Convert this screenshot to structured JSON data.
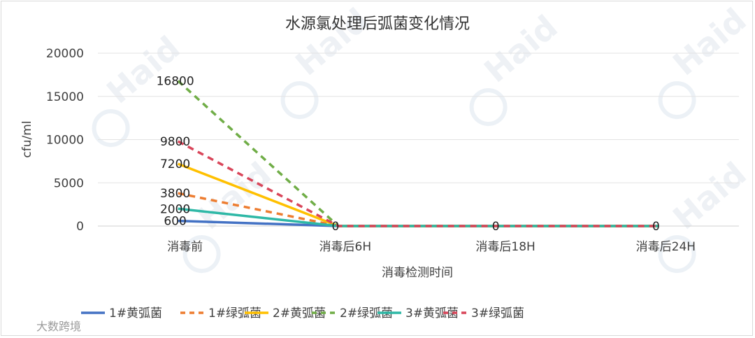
{
  "chart_data": {
    "type": "line",
    "title": "水源氯处理后弧菌变化情况",
    "xlabel": "消毒检测时间",
    "ylabel": "cfu/ml",
    "categories": [
      "消毒前",
      "消毒后6H",
      "消毒后18H",
      "消毒后24H"
    ],
    "ylim": [
      0,
      20000
    ],
    "yticks": [
      "0",
      "5000",
      "10000",
      "15000",
      "20000"
    ],
    "grid": true,
    "legend_position": "bottom",
    "series": [
      {
        "name": "1#黄弧菌",
        "values": [
          600,
          0,
          0,
          0
        ],
        "color": "#4472C4",
        "dash": "solid"
      },
      {
        "name": "1#绿弧菌",
        "values": [
          3800,
          0,
          0,
          0
        ],
        "color": "#ED7D31",
        "dash": "dashed"
      },
      {
        "name": "2#黄弧菌",
        "values": [
          7200,
          0,
          0,
          0
        ],
        "color": "#FFC000",
        "dash": "solid"
      },
      {
        "name": "2#绿弧菌",
        "values": [
          16800,
          0,
          0,
          0
        ],
        "color": "#70AD47",
        "dash": "dashed"
      },
      {
        "name": "3#黄弧菌",
        "values": [
          2000,
          0,
          0,
          0
        ],
        "color": "#2EB8A6",
        "dash": "solid"
      },
      {
        "name": "3#绿弧菌",
        "values": [
          9800,
          0,
          0,
          0
        ],
        "color": "#D9465A",
        "dash": "dashed"
      }
    ],
    "data_labels": [
      {
        "category": "消毒前",
        "text": "16800",
        "series": "2#绿弧菌"
      },
      {
        "category": "消毒前",
        "text": "9800",
        "series": "3#绿弧菌"
      },
      {
        "category": "消毒前",
        "text": "7200",
        "series": "2#黄弧菌"
      },
      {
        "category": "消毒前",
        "text": "3800",
        "series": "1#绿弧菌"
      },
      {
        "category": "消毒前",
        "text": "2000",
        "series": "3#黄弧菌"
      },
      {
        "category": "消毒前",
        "text": "600",
        "series": "1#黄弧菌"
      },
      {
        "category": "消毒后6H",
        "text": "0"
      },
      {
        "category": "消毒后18H",
        "text": "0"
      },
      {
        "category": "消毒后24H",
        "text": "0"
      }
    ]
  },
  "watermark": {
    "brand": "Haid",
    "source": "大数跨境"
  }
}
